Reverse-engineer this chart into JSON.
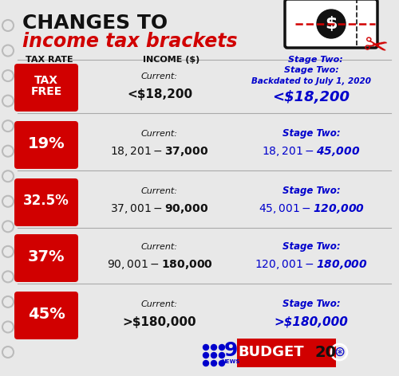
{
  "title_line1": "CHANGES TO",
  "title_line2": "income tax brackets",
  "header_rate": "TAX RATE",
  "header_income": "INCOME ($)",
  "bg_color": "#e4e4e4",
  "red_color": "#d10000",
  "blue_color": "#0000cc",
  "black_color": "#111111",
  "rows": [
    {
      "rate": "TAX\nFREE",
      "current_label": "Current:",
      "current_value": "<$18,200",
      "stage_label1": "Stage Two:",
      "stage_label2": "Backdated to July 1, 2020",
      "stage_value": "<$18,200",
      "rate_fontsize": 10
    },
    {
      "rate": "19%",
      "current_label": "Current:",
      "current_value": "$18,201-$37,000",
      "stage_label1": "Stage Two:",
      "stage_label2": "",
      "stage_value": "$18,201-$45,000",
      "rate_fontsize": 14
    },
    {
      "rate": "32.5%",
      "current_label": "Current:",
      "current_value": "$37,001-$90,000",
      "stage_label1": "Stage Two:",
      "stage_label2": "",
      "stage_value": "$45,001-$120,000",
      "rate_fontsize": 12
    },
    {
      "rate": "37%",
      "current_label": "Current:",
      "current_value": "$90,001-$180,000",
      "stage_label1": "Stage Two:",
      "stage_label2": "",
      "stage_value": "$120,001-$180,000",
      "rate_fontsize": 14
    },
    {
      "rate": "45%",
      "current_label": "Current:",
      "current_value": ">$180,000",
      "stage_label1": "Stage Two:",
      "stage_label2": "",
      "stage_value": ">$180,000",
      "rate_fontsize": 14
    }
  ]
}
